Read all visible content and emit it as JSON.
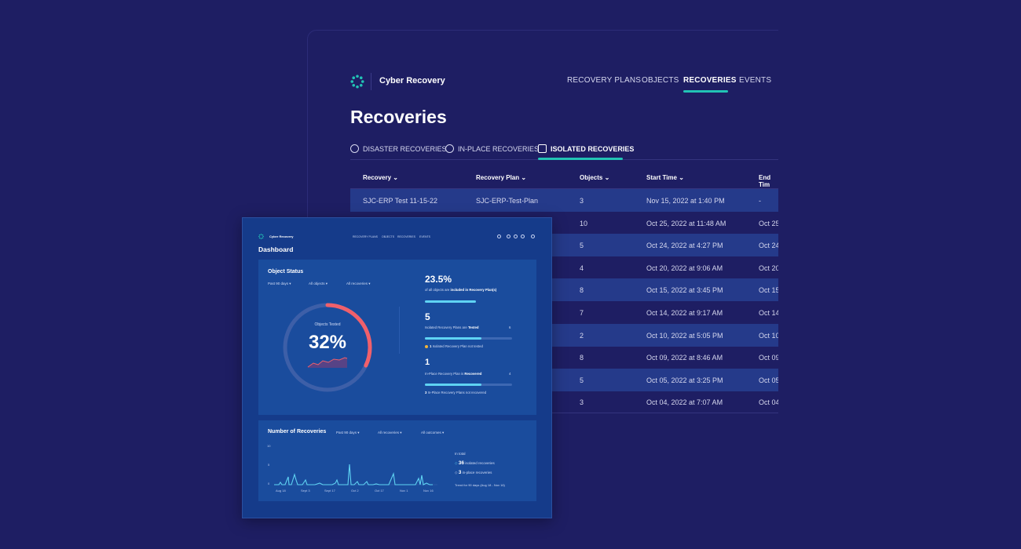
{
  "background": {
    "brand": "Cyber Recovery",
    "nav": [
      "RECOVERY PLANS",
      "OBJECTS",
      "RECOVERIES",
      "EVENTS"
    ],
    "active_nav": "RECOVERIES",
    "page_title": "Recoveries",
    "tabs": [
      "DISASTER RECOVERIES",
      "IN-PLACE RECOVERIES",
      "ISOLATED RECOVERIES"
    ],
    "active_tab": "ISOLATED RECOVERIES",
    "columns": [
      "Recovery",
      "Recovery Plan",
      "Objects",
      "Start Time",
      "End Tim"
    ],
    "rows": [
      {
        "recovery": "SJC-ERP Test 11-15-22",
        "plan": "SJC-ERP-Test-Plan",
        "objects": "3",
        "start": "Nov 15, 2022 at 1:40 PM",
        "end": "-"
      },
      {
        "recovery": "",
        "plan": "",
        "objects": "10",
        "start": "Oct 25, 2022 at 11:48 AM",
        "end": "Oct 25,"
      },
      {
        "recovery": "",
        "plan": "",
        "objects": "5",
        "start": "Oct 24, 2022 at 4:27 PM",
        "end": "Oct 24,"
      },
      {
        "recovery": "",
        "plan": "",
        "objects": "4",
        "start": "Oct 20, 2022 at 9:06 AM",
        "end": "Oct 20,"
      },
      {
        "recovery": "",
        "plan": "",
        "objects": "8",
        "start": "Oct 15, 2022 at 3:45 PM",
        "end": "Oct 15,"
      },
      {
        "recovery": "",
        "plan": "",
        "objects": "7",
        "start": "Oct 14, 2022 at 9:17 AM",
        "end": "Oct 14,"
      },
      {
        "recovery": "",
        "plan": "",
        "objects": "2",
        "start": "Oct 10, 2022 at 5:05 PM",
        "end": "Oct 10,"
      },
      {
        "recovery": "",
        "plan": "",
        "objects": "8",
        "start": "Oct 09, 2022 at 8:46 AM",
        "end": "Oct 09,"
      },
      {
        "recovery": "",
        "plan": "",
        "objects": "5",
        "start": "Oct 05, 2022 at 3:25 PM",
        "end": "Oct 05,"
      },
      {
        "recovery": "",
        "plan": "",
        "objects": "3",
        "start": "Oct 04, 2022 at 7:07 AM",
        "end": "Oct 04,"
      }
    ]
  },
  "dashboard": {
    "brand": "Cyber Recovery",
    "nav": [
      "RECOVERY PLANS",
      "OBJECTS",
      "RECOVERIES",
      "EVENTS"
    ],
    "title": "Dashboard",
    "object_status": {
      "title": "Object Status",
      "filters": [
        "Past 90 days",
        "All objects",
        "All recoveries"
      ],
      "gauge_label": "Objects Tested",
      "gauge_value": "32%",
      "gauge_fraction": 0.32,
      "stat1_value": "23.5%",
      "stat1_text_pre": "of all objects are",
      "stat1_text_bold": "included in Recovery Plan(s)",
      "stat1_fraction": 0.235,
      "stat2_value": "5",
      "stat2_text_pre": "Isolated Recovery Plans are",
      "stat2_text_bold": "Tested",
      "stat2_total": "6",
      "stat2_fraction": 0.833,
      "stat2_note_bold": "1",
      "stat2_note": "Isolated Recovery Plan not tested",
      "stat3_value": "1",
      "stat3_text_pre": "In-Place Recovery Plan is",
      "stat3_text_bold": "Recovered",
      "stat3_total": "4",
      "stat3_fraction": 0.25,
      "stat3_note_bold": "3",
      "stat3_note": "In-Place Recovery Plans not recovered"
    },
    "recoveries": {
      "title": "Number of Recoveries",
      "filters": [
        "Past 90 days",
        "All recoveries",
        "All outcomes"
      ],
      "y_ticks": [
        "10",
        "5",
        "0"
      ],
      "x_ticks": [
        "Aug 18",
        "Sept 3",
        "Sept 17",
        "Oct 2",
        "Oct 17",
        "Nov 1",
        "Nov 16"
      ],
      "in_total": "In total",
      "isolated_count": "36",
      "isolated_label": "isolated recoveries",
      "inplace_count": "3",
      "inplace_label": "in-place recoveries",
      "trend": "Trend for 90 days (Aug 18 - Nov 16)"
    }
  },
  "colors": {
    "bg": "#1e1e63",
    "accent": "#22c3b5",
    "gauge_arc": "#f0606b",
    "bar": "#5fd3f3"
  }
}
